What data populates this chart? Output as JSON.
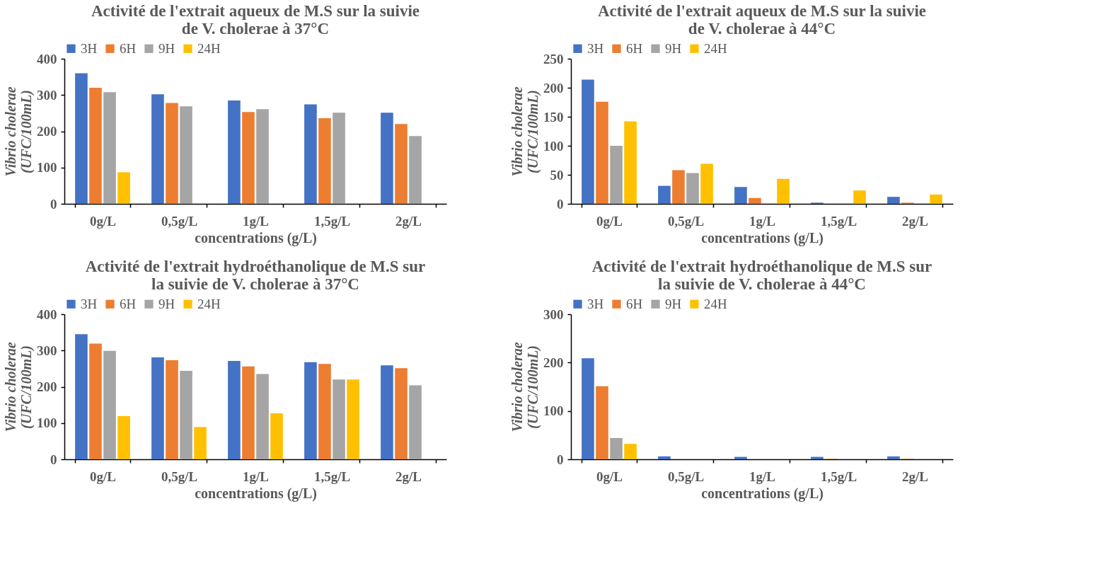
{
  "chart_data": [
    {
      "type": "bar",
      "title": "Activité de l'extrait aqueux de M.S sur la suivie de V. cholerae à 37°C",
      "xlabel": "concentrations (g/L)",
      "ylabel": "Vibrio cholerae (UFC/100mL)",
      "categories": [
        "0g/L",
        "0,5g/L",
        "1g/L",
        "1,5g/L",
        "2g/L"
      ],
      "ylim": [
        0,
        400
      ],
      "yticks": [
        0,
        100,
        200,
        300,
        400
      ],
      "grid": false,
      "legend": "top",
      "series": [
        {
          "name": "3H",
          "color": "#4472c4",
          "values": [
            360,
            302,
            285,
            274,
            251
          ]
        },
        {
          "name": "6H",
          "color": "#ed7d31",
          "values": [
            320,
            278,
            253,
            236,
            220
          ]
        },
        {
          "name": "9H",
          "color": "#a5a5a5",
          "values": [
            308,
            269,
            261,
            251,
            187
          ]
        },
        {
          "name": "24H",
          "color": "#ffc000",
          "values": [
            87,
            0,
            0,
            0,
            0
          ]
        }
      ]
    },
    {
      "type": "bar",
      "title": "Activité de l'extrait aqueux de M.S sur la suivie de V. cholerae à 44°C",
      "xlabel": "concentrations (g/L)",
      "ylabel": "Vibrio cholerae (UFC/100mL)",
      "categories": [
        "0g/L",
        "0,5g/L",
        "1g/L",
        "1,5g/L",
        "2g/L"
      ],
      "ylim": [
        0,
        250
      ],
      "yticks": [
        0,
        50,
        100,
        150,
        200,
        250
      ],
      "grid": false,
      "legend": "top",
      "series": [
        {
          "name": "3H",
          "color": "#4472c4",
          "values": [
            214,
            31,
            29,
            2,
            12
          ]
        },
        {
          "name": "6H",
          "color": "#ed7d31",
          "values": [
            176,
            58,
            10,
            0,
            2
          ]
        },
        {
          "name": "9H",
          "color": "#a5a5a5",
          "values": [
            100,
            53,
            0,
            0,
            0
          ]
        },
        {
          "name": "24H",
          "color": "#ffc000",
          "values": [
            142,
            69,
            43,
            23,
            16
          ]
        }
      ]
    },
    {
      "type": "bar",
      "title": "Activité de l'extrait hydroéthanolique de M.S sur la suivie de V. cholerae à 37°C",
      "xlabel": "concentrations (g/L)",
      "ylabel": "Vibrio cholerae (UFC/100mL)",
      "categories": [
        "0g/L",
        "0,5g/L",
        "1g/L",
        "1,5g/L",
        "2g/L"
      ],
      "ylim": [
        0,
        400
      ],
      "yticks": [
        0,
        100,
        200,
        300,
        400
      ],
      "grid": false,
      "legend": "top",
      "series": [
        {
          "name": "3H",
          "color": "#4472c4",
          "values": [
            345,
            281,
            271,
            268,
            259
          ]
        },
        {
          "name": "6H",
          "color": "#ed7d31",
          "values": [
            319,
            273,
            256,
            263,
            251
          ]
        },
        {
          "name": "9H",
          "color": "#a5a5a5",
          "values": [
            299,
            244,
            235,
            220,
            204
          ]
        },
        {
          "name": "24H",
          "color": "#ffc000",
          "values": [
            119,
            89,
            127,
            220,
            0
          ]
        }
      ]
    },
    {
      "type": "bar",
      "title": "Activité de l'extrait hydroéthanolique de M.S sur la suivie de V. cholerae à 44°C",
      "xlabel": "concentrations (g/L)",
      "ylabel": "Vibrio cholerae (UFC/100mL)",
      "categories": [
        "0g/L",
        "0,5g/L",
        "1g/L",
        "1,5g/L",
        "2g/L"
      ],
      "ylim": [
        0,
        300
      ],
      "yticks": [
        0,
        100,
        200,
        300
      ],
      "grid": false,
      "legend": "top",
      "series": [
        {
          "name": "3H",
          "color": "#4472c4",
          "values": [
            209,
            6,
            5,
            5,
            6
          ]
        },
        {
          "name": "6H",
          "color": "#ed7d31",
          "values": [
            151,
            0,
            0,
            1,
            1
          ]
        },
        {
          "name": "9H",
          "color": "#a5a5a5",
          "values": [
            44,
            0,
            0,
            0,
            0
          ]
        },
        {
          "name": "24H",
          "color": "#ffc000",
          "values": [
            32,
            0,
            0,
            0,
            0
          ]
        }
      ]
    }
  ]
}
